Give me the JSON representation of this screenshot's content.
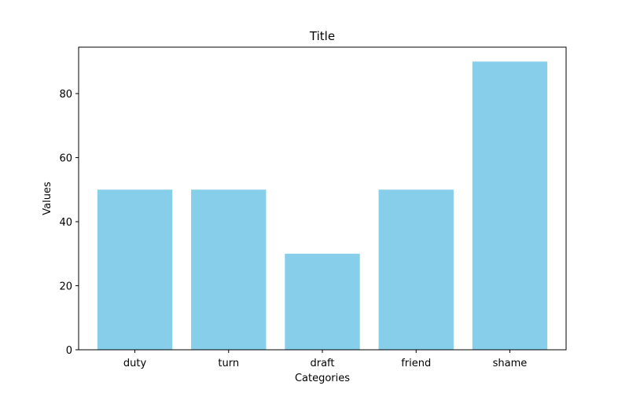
{
  "chart_data": {
    "type": "bar",
    "title": "Title",
    "xlabel": "Categories",
    "ylabel": "Values",
    "categories": [
      "duty",
      "turn",
      "draft",
      "friend",
      "shame"
    ],
    "values": [
      50,
      50,
      30,
      50,
      90
    ],
    "ylim": [
      0,
      94.5
    ],
    "yticks": [
      0,
      20,
      40,
      60,
      80
    ],
    "bar_color": "#87ceeb",
    "grid": false,
    "legend": "none"
  }
}
